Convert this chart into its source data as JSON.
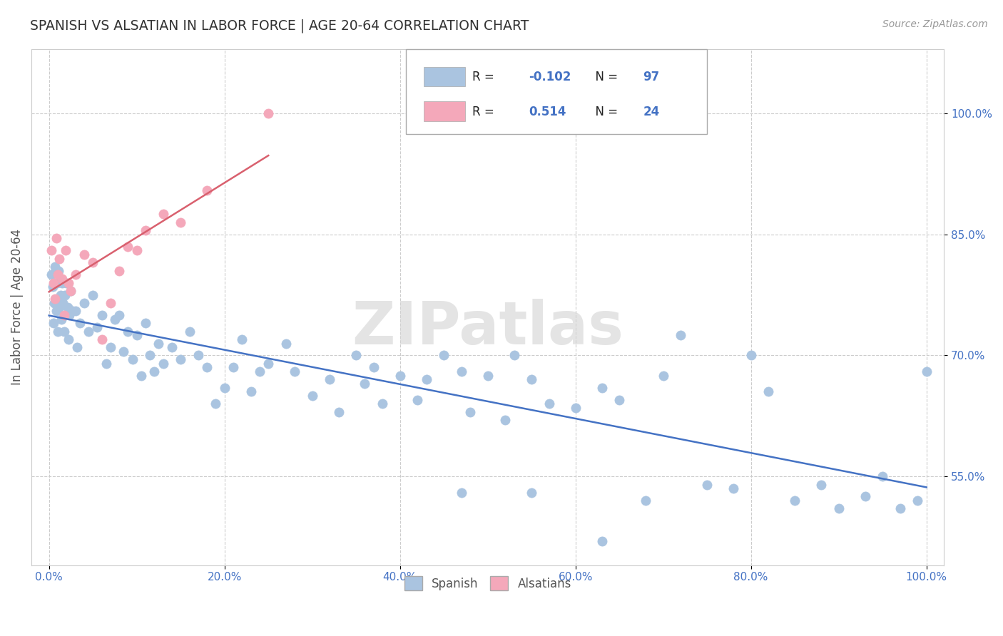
{
  "title": "SPANISH VS ALSATIAN IN LABOR FORCE | AGE 20-64 CORRELATION CHART",
  "source_text": "Source: ZipAtlas.com",
  "ylabel": "In Labor Force | Age 20-64",
  "watermark": "ZIPatlas",
  "legend_blue_r": "-0.102",
  "legend_blue_n": "97",
  "legend_pink_r": "0.514",
  "legend_pink_n": "24",
  "blue_color": "#aac4e0",
  "pink_color": "#f4a8ba",
  "blue_line_color": "#4472c4",
  "pink_line_color": "#d9606e",
  "blue_x": [
    0.3,
    0.4,
    0.5,
    0.6,
    0.7,
    0.8,
    0.9,
    1.0,
    1.1,
    1.2,
    1.3,
    1.4,
    1.5,
    1.6,
    1.7,
    1.8,
    2.0,
    2.1,
    2.2,
    2.3,
    2.5,
    2.7,
    3.0,
    3.2,
    3.5,
    4.0,
    4.5,
    5.0,
    5.5,
    6.0,
    6.5,
    7.0,
    7.5,
    8.0,
    8.5,
    9.0,
    9.5,
    10.0,
    10.5,
    11.0,
    11.5,
    12.0,
    12.5,
    13.0,
    14.0,
    15.0,
    16.0,
    17.0,
    18.0,
    19.0,
    20.0,
    21.0,
    22.0,
    23.0,
    24.0,
    25.0,
    27.0,
    28.0,
    30.0,
    32.0,
    33.0,
    35.0,
    36.0,
    37.0,
    38.0,
    40.0,
    42.0,
    43.0,
    45.0,
    47.0,
    48.0,
    50.0,
    52.0,
    53.0,
    55.0,
    57.0,
    60.0,
    63.0,
    65.0,
    68.0,
    70.0,
    72.0,
    75.0,
    78.0,
    80.0,
    82.0,
    85.0,
    88.0,
    90.0,
    93.0,
    95.0,
    97.0,
    99.0,
    100.0,
    55.0,
    63.0,
    47.0
  ],
  "blue_y": [
    80.0,
    78.5,
    74.0,
    76.5,
    81.0,
    75.5,
    79.0,
    73.0,
    80.5,
    76.0,
    77.5,
    74.5,
    79.0,
    76.5,
    73.0,
    77.5,
    79.0,
    76.0,
    72.0,
    75.0,
    78.0,
    75.5,
    75.5,
    71.0,
    74.0,
    76.5,
    73.0,
    77.5,
    73.5,
    75.0,
    69.0,
    71.0,
    74.5,
    75.0,
    70.5,
    73.0,
    69.5,
    72.5,
    67.5,
    74.0,
    70.0,
    68.0,
    71.5,
    69.0,
    71.0,
    69.5,
    73.0,
    70.0,
    68.5,
    64.0,
    66.0,
    68.5,
    72.0,
    65.5,
    68.0,
    69.0,
    71.5,
    68.0,
    65.0,
    67.0,
    63.0,
    70.0,
    66.5,
    68.5,
    64.0,
    67.5,
    64.5,
    67.0,
    70.0,
    68.0,
    63.0,
    67.5,
    62.0,
    70.0,
    67.0,
    64.0,
    63.5,
    66.0,
    64.5,
    52.0,
    67.5,
    72.5,
    54.0,
    53.5,
    70.0,
    65.5,
    52.0,
    54.0,
    51.0,
    52.5,
    55.0,
    51.0,
    52.0,
    68.0,
    53.0,
    47.0,
    53.0
  ],
  "pink_x": [
    0.3,
    0.5,
    0.7,
    0.8,
    1.0,
    1.2,
    1.5,
    1.7,
    1.9,
    2.2,
    2.5,
    3.0,
    4.0,
    5.0,
    6.0,
    7.0,
    8.0,
    9.0,
    10.0,
    11.0,
    13.0,
    15.0,
    18.0,
    25.0
  ],
  "pink_y": [
    83.0,
    79.0,
    77.0,
    84.5,
    80.0,
    82.0,
    79.5,
    75.0,
    83.0,
    79.0,
    78.0,
    80.0,
    82.5,
    81.5,
    72.0,
    76.5,
    80.5,
    83.5,
    83.0,
    85.5,
    87.5,
    86.5,
    90.5,
    100.0
  ],
  "xlim": [
    -2,
    102
  ],
  "ylim": [
    44,
    108
  ],
  "ytick_vals": [
    55.0,
    70.0,
    85.0,
    100.0
  ],
  "xtick_vals": [
    0.0,
    20.0,
    40.0,
    60.0,
    80.0,
    100.0
  ],
  "grid_color": "#cccccc",
  "bg_color": "#ffffff",
  "tick_color": "#4472c4",
  "spine_color": "#cccccc"
}
